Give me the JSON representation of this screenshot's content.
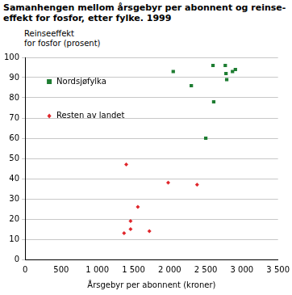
{
  "chart_data": {
    "type": "scatter",
    "title": [
      "Samanhengen mellom årsgebyr per abonnent og reinse-",
      "effekt for fosfor, etter fylke. 1999"
    ],
    "y_label": [
      "Reinseeffekt",
      "for fosfor (prosent)"
    ],
    "x_label": "Årsgebyr per abonnent (kroner)",
    "xlim": [
      0,
      3500
    ],
    "xticks": [
      0,
      500,
      {
        "value": 1000,
        "label": "1 000"
      },
      {
        "value": 1500,
        "label": "1 500"
      },
      {
        "value": 2000,
        "label": "2 000"
      },
      {
        "value": 2500,
        "label": "2 500"
      },
      {
        "value": 3000,
        "label": "3 000"
      },
      {
        "value": 3500,
        "label": "3 500"
      }
    ],
    "ylim": [
      0,
      100
    ],
    "yticks": [
      0,
      10,
      20,
      30,
      40,
      50,
      60,
      70,
      80,
      90,
      100
    ],
    "grid": true,
    "legend": "upper left",
    "series": [
      {
        "name": "Nordsjøfylka",
        "color": "#1e7d32",
        "marker": "square",
        "x": [
          2050,
          2300,
          2500,
          2600,
          2610,
          2770,
          2780,
          2790,
          2870,
          2910
        ],
        "values": [
          93,
          86,
          60,
          96,
          78,
          96,
          92,
          89,
          93,
          94
        ]
      },
      {
        "name": "Resten av landet",
        "color": "#e0262b",
        "marker": "diamond",
        "x": [
          1370,
          1400,
          1460,
          1460,
          1560,
          1720,
          1980,
          2380
        ],
        "values": [
          13,
          47,
          19,
          15,
          26,
          14,
          38,
          37
        ]
      }
    ]
  }
}
